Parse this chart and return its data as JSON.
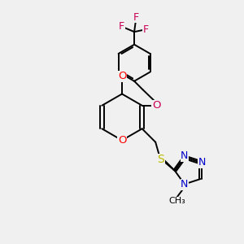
{
  "background_color": "#f0f0f0",
  "figsize": [
    3.0,
    3.0
  ],
  "dpi": 100,
  "bond_color": "#000000",
  "bond_width": 1.4,
  "atom_colors": {
    "O": "#ff0000",
    "O_ether": "#cc0055",
    "N": "#0000cc",
    "S": "#bbbb00",
    "F": "#cc0055",
    "C": "#000000"
  },
  "font_size": 8.5
}
